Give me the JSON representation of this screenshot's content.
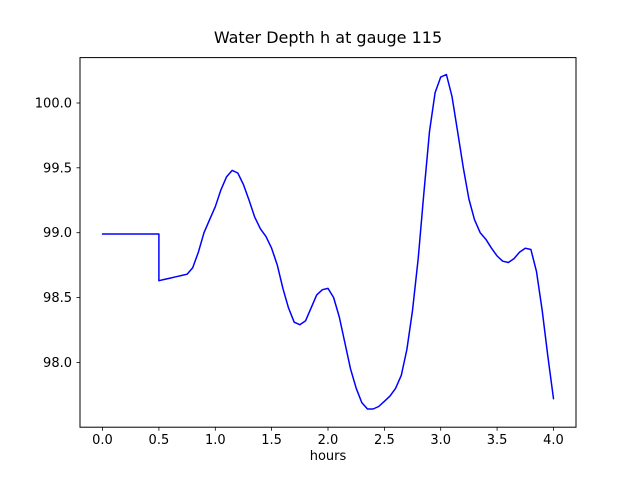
{
  "figure": {
    "background": "#ffffff"
  },
  "chart_data": {
    "type": "line",
    "title": "Water Depth h at gauge 115",
    "xlabel": "hours",
    "ylabel": "",
    "grid": false,
    "legend": "none",
    "line_color": "#0000ff",
    "axis_color": "#000000",
    "xlim": [
      -0.2,
      4.2
    ],
    "ylim": [
      97.5,
      100.35
    ],
    "x_ticks": [
      0.0,
      0.5,
      1.0,
      1.5,
      2.0,
      2.5,
      3.0,
      3.5,
      4.0
    ],
    "x_tick_labels": [
      "0.0",
      "0.5",
      "1.0",
      "1.5",
      "2.0",
      "2.5",
      "3.0",
      "3.5",
      "4.0"
    ],
    "y_ticks": [
      98.0,
      98.5,
      99.0,
      99.5,
      100.0
    ],
    "y_tick_labels": [
      "98.0",
      "98.5",
      "99.0",
      "99.5",
      "100.0"
    ],
    "series": [
      {
        "name": "h",
        "x": [
          0.0,
          0.1,
          0.2,
          0.3,
          0.4,
          0.5,
          0.5,
          0.55,
          0.6,
          0.65,
          0.7,
          0.75,
          0.8,
          0.85,
          0.9,
          0.95,
          1.0,
          1.05,
          1.1,
          1.15,
          1.2,
          1.25,
          1.3,
          1.35,
          1.4,
          1.45,
          1.5,
          1.55,
          1.6,
          1.65,
          1.7,
          1.75,
          1.8,
          1.85,
          1.9,
          1.95,
          2.0,
          2.05,
          2.1,
          2.15,
          2.2,
          2.25,
          2.3,
          2.35,
          2.4,
          2.45,
          2.5,
          2.55,
          2.6,
          2.65,
          2.7,
          2.75,
          2.8,
          2.85,
          2.9,
          2.95,
          3.0,
          3.05,
          3.1,
          3.15,
          3.2,
          3.25,
          3.3,
          3.35,
          3.4,
          3.45,
          3.5,
          3.55,
          3.6,
          3.65,
          3.7,
          3.75,
          3.8,
          3.85,
          3.9,
          3.95,
          4.0
        ],
        "y": [
          98.99,
          98.99,
          98.99,
          98.99,
          98.99,
          98.99,
          98.63,
          98.64,
          98.65,
          98.66,
          98.67,
          98.68,
          98.73,
          98.85,
          99.0,
          99.1,
          99.2,
          99.33,
          99.43,
          99.48,
          99.46,
          99.37,
          99.25,
          99.12,
          99.03,
          98.97,
          98.88,
          98.75,
          98.57,
          98.42,
          98.31,
          98.29,
          98.32,
          98.42,
          98.52,
          98.56,
          98.57,
          98.5,
          98.35,
          98.15,
          97.95,
          97.8,
          97.69,
          97.64,
          97.64,
          97.66,
          97.7,
          97.74,
          97.8,
          97.9,
          98.1,
          98.4,
          98.8,
          99.3,
          99.78,
          100.08,
          100.2,
          100.22,
          100.05,
          99.78,
          99.5,
          99.26,
          99.1,
          99.0,
          98.95,
          98.88,
          98.82,
          98.78,
          98.77,
          98.8,
          98.85,
          98.88,
          98.87,
          98.7,
          98.4,
          98.05,
          97.72
        ]
      }
    ]
  }
}
